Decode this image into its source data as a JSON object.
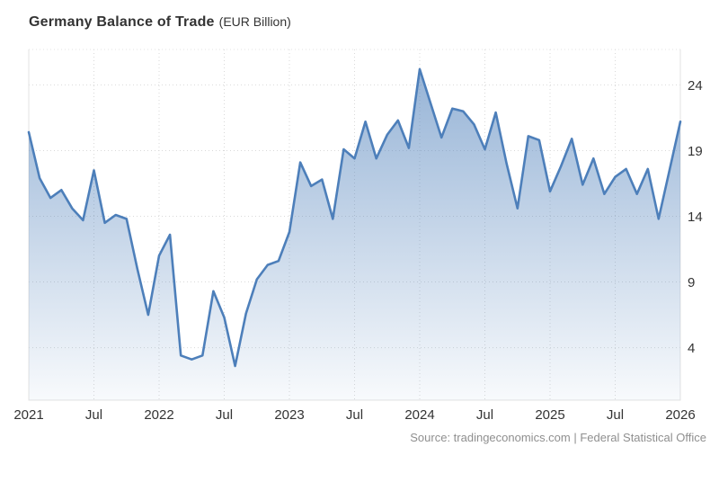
{
  "title": {
    "main": "Germany Balance of Trade",
    "unit": "(EUR Billion)"
  },
  "source": "Source: tradingeconomics.com | Federal Statistical Office",
  "colors": {
    "line": "#4d7fba",
    "fill_gradient_top": "rgba(77,127,186,0.62)",
    "fill_gradient_bottom": "rgba(77,127,186,0.04)",
    "grid": "#d9d9d9",
    "axis_border": "#e3e3e3",
    "tick_text": "#333333",
    "source_text": "#8f8f8f",
    "background": "#ffffff"
  },
  "chart_data": {
    "type": "area",
    "title": "Germany Balance of Trade",
    "unit": "EUR Billion",
    "frequency": "monthly",
    "x": [
      "2021-01",
      "2021-02",
      "2021-03",
      "2021-04",
      "2021-05",
      "2021-06",
      "2021-07",
      "2021-08",
      "2021-09",
      "2021-10",
      "2021-11",
      "2021-12",
      "2022-01",
      "2022-02",
      "2022-03",
      "2022-04",
      "2022-05",
      "2022-06",
      "2022-07",
      "2022-08",
      "2022-09",
      "2022-10",
      "2022-11",
      "2022-12",
      "2023-01",
      "2023-02",
      "2023-03",
      "2023-04",
      "2023-05",
      "2023-06",
      "2023-07",
      "2023-08",
      "2023-09",
      "2023-10",
      "2023-11",
      "2023-12",
      "2024-01",
      "2024-02",
      "2024-03",
      "2024-04",
      "2024-05",
      "2024-06",
      "2024-07",
      "2024-08",
      "2024-09",
      "2024-10",
      "2024-11",
      "2024-12",
      "2025-01",
      "2025-02",
      "2025-03",
      "2025-04",
      "2025-05",
      "2025-06",
      "2025-07",
      "2025-08",
      "2025-09",
      "2025-10",
      "2025-11",
      "2025-12",
      "2026-01"
    ],
    "series": [
      {
        "name": "Balance of Trade",
        "values": [
          20.4,
          16.9,
          15.4,
          16.0,
          14.6,
          13.7,
          17.5,
          13.5,
          14.1,
          13.8,
          10.0,
          6.5,
          11.0,
          12.6,
          3.4,
          3.1,
          3.4,
          8.3,
          6.3,
          2.6,
          6.6,
          9.2,
          10.3,
          10.6,
          12.8,
          18.1,
          16.3,
          16.8,
          13.8,
          19.1,
          18.4,
          21.2,
          18.4,
          20.2,
          21.3,
          19.2,
          25.2,
          22.6,
          20.0,
          22.2,
          22.0,
          21.0,
          19.1,
          21.9,
          18.0,
          14.6,
          20.1,
          19.8,
          15.9,
          17.8,
          19.9,
          16.4,
          18.4,
          15.7,
          17.0,
          17.6,
          15.7,
          17.6,
          13.8,
          17.5,
          21.2
        ]
      }
    ],
    "x_ticks": [
      {
        "label": "2021",
        "index": 0
      },
      {
        "label": "Jul",
        "index": 6
      },
      {
        "label": "2022",
        "index": 12
      },
      {
        "label": "Jul",
        "index": 18
      },
      {
        "label": "2023",
        "index": 24
      },
      {
        "label": "Jul",
        "index": 30
      },
      {
        "label": "2024",
        "index": 36
      },
      {
        "label": "Jul",
        "index": 42
      },
      {
        "label": "2025",
        "index": 48
      },
      {
        "label": "Jul",
        "index": 54
      },
      {
        "label": "2026",
        "index": 60
      }
    ],
    "y_ticks": [
      4,
      9,
      14,
      19,
      24
    ],
    "ylim": [
      0,
      26.7
    ],
    "y_axis_side": "right",
    "grid": "dotted",
    "legend": "none",
    "xlabel": "",
    "ylabel": ""
  }
}
